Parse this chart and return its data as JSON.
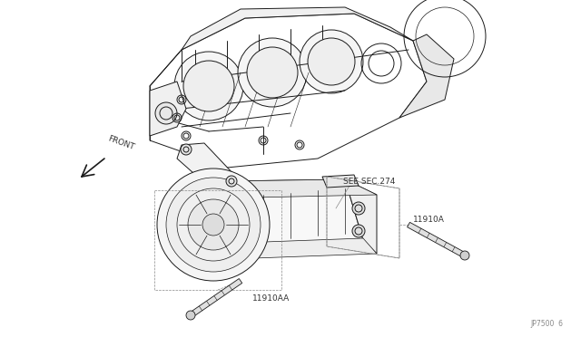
{
  "background_color": "#ffffff",
  "fig_width": 6.4,
  "fig_height": 3.72,
  "dpi": 100,
  "border_color": "#cccccc",
  "line_color": "#1a1a1a",
  "text_color": "#333333",
  "label_11910A": "11910A",
  "label_11910AA": "11910AA",
  "label_see_sec": "SEE SEC.274",
  "label_front": "FRONT",
  "label_ref": "JP7500  6"
}
